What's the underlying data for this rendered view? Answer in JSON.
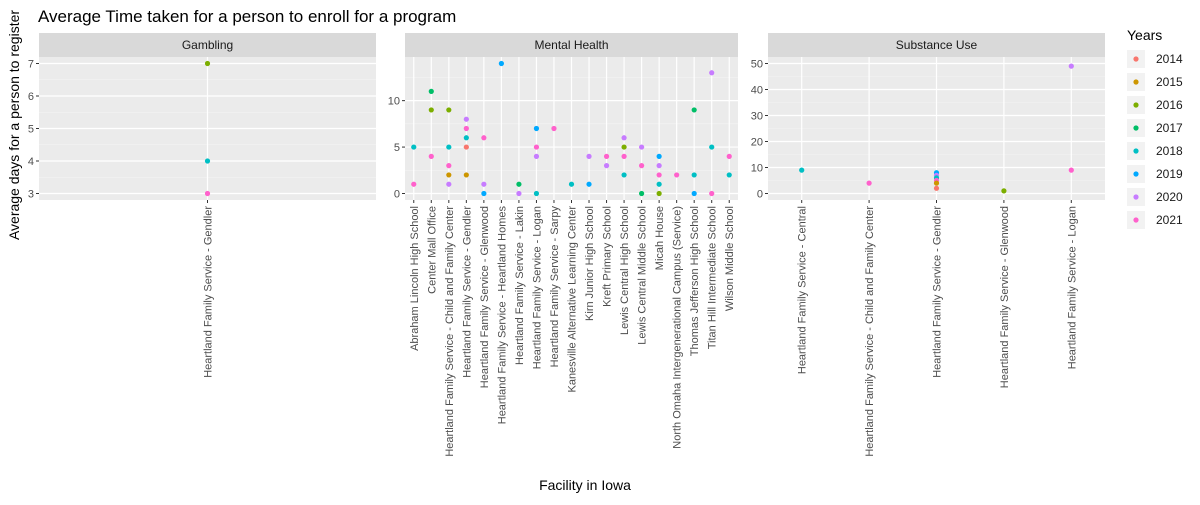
{
  "chart_data": {
    "type": "scatter",
    "title": "Average Time taken for a person to enroll for a program",
    "xlabel": "Facility in Iowa",
    "ylabel": "Average days for a person to register",
    "legend": {
      "title": "Years",
      "placement": "right",
      "entries": [
        {
          "year": "2014",
          "color": "#F8766D"
        },
        {
          "year": "2015",
          "color": "#CD9600"
        },
        {
          "year": "2016",
          "color": "#7CAE00"
        },
        {
          "year": "2017",
          "color": "#00BE67"
        },
        {
          "year": "2018",
          "color": "#00BFC4"
        },
        {
          "year": "2019",
          "color": "#00A9FF"
        },
        {
          "year": "2020",
          "color": "#C77CFF"
        },
        {
          "year": "2021",
          "color": "#FF61CC"
        }
      ]
    },
    "grid": true,
    "panels": [
      {
        "name": "Gambling",
        "ylim": [
          2.8,
          7.2
        ],
        "yticks": [
          3,
          4,
          5,
          6,
          7
        ],
        "categories": [
          "Heartland Family Service - Gendler"
        ],
        "points": [
          {
            "x": "Heartland Family Service - Gendler",
            "year": "2016",
            "y": 7
          },
          {
            "x": "Heartland Family Service - Gendler",
            "year": "2018",
            "y": 4
          },
          {
            "x": "Heartland Family Service - Gendler",
            "year": "2021",
            "y": 3
          }
        ]
      },
      {
        "name": "Mental Health",
        "ylim": [
          -0.7,
          14.7
        ],
        "yticks": [
          0,
          5,
          10
        ],
        "categories": [
          "Abraham Lincoln High School",
          "Center Mall Office",
          "Heartland Family Service - Child and Family Center",
          "Heartland Family Service - Gendler",
          "Heartland Family Service - Glenwood",
          "Heartland Family Service - Heartland Homes",
          "Heartland Family Service - Lakin",
          "Heartland Family Service - Logan",
          "Heartland Family Service - Sarpy",
          "Kanesville Alternative Learning Center",
          "Kirn Junior High  School",
          "Kreft Primary School",
          "Lewis Central High School",
          "Lewis Central Middle School",
          "Micah House",
          "North Omaha Intergenerational Campus (Service)",
          "Thomas Jefferson High School",
          "Titan Hill Intermediate School",
          "Wilson Middle School"
        ],
        "points": [
          {
            "x": "Abraham Lincoln High School",
            "year": "2018",
            "y": 5
          },
          {
            "x": "Abraham Lincoln High School",
            "year": "2021",
            "y": 1
          },
          {
            "x": "Center Mall Office",
            "year": "2017",
            "y": 11
          },
          {
            "x": "Center Mall Office",
            "year": "2016",
            "y": 9
          },
          {
            "x": "Center Mall Office",
            "year": "2021",
            "y": 4
          },
          {
            "x": "Heartland Family Service - Child and Family Center",
            "year": "2016",
            "y": 9
          },
          {
            "x": "Heartland Family Service - Child and Family Center",
            "year": "2018",
            "y": 5
          },
          {
            "x": "Heartland Family Service - Child and Family Center",
            "year": "2021",
            "y": 3
          },
          {
            "x": "Heartland Family Service - Child and Family Center",
            "year": "2015",
            "y": 2
          },
          {
            "x": "Heartland Family Service - Child and Family Center",
            "year": "2020",
            "y": 1
          },
          {
            "x": "Heartland Family Service - Gendler",
            "year": "2020",
            "y": 8
          },
          {
            "x": "Heartland Family Service - Gendler",
            "year": "2021",
            "y": 7
          },
          {
            "x": "Heartland Family Service - Gendler",
            "year": "2018",
            "y": 6
          },
          {
            "x": "Heartland Family Service - Gendler",
            "year": "2014",
            "y": 5
          },
          {
            "x": "Heartland Family Service - Gendler",
            "year": "2015",
            "y": 2
          },
          {
            "x": "Heartland Family Service - Glenwood",
            "year": "2021",
            "y": 6
          },
          {
            "x": "Heartland Family Service - Glenwood",
            "year": "2020",
            "y": 1
          },
          {
            "x": "Heartland Family Service - Glenwood",
            "year": "2019",
            "y": 0
          },
          {
            "x": "Heartland Family Service - Heartland Homes",
            "year": "2019",
            "y": 14
          },
          {
            "x": "Heartland Family Service - Lakin",
            "year": "2017",
            "y": 1
          },
          {
            "x": "Heartland Family Service - Lakin",
            "year": "2020",
            "y": 0
          },
          {
            "x": "Heartland Family Service - Logan",
            "year": "2019",
            "y": 7
          },
          {
            "x": "Heartland Family Service - Logan",
            "year": "2021",
            "y": 5
          },
          {
            "x": "Heartland Family Service - Logan",
            "year": "2020",
            "y": 4
          },
          {
            "x": "Heartland Family Service - Logan",
            "year": "2018",
            "y": 0
          },
          {
            "x": "Heartland Family Service - Sarpy",
            "year": "2021",
            "y": 7
          },
          {
            "x": "Kanesville Alternative Learning Center",
            "year": "2018",
            "y": 1
          },
          {
            "x": "Kirn Junior High  School",
            "year": "2019",
            "y": 1
          },
          {
            "x": "Kirn Junior High  School",
            "year": "2020",
            "y": 4
          },
          {
            "x": "Kreft Primary School",
            "year": "2021",
            "y": 4
          },
          {
            "x": "Kreft Primary School",
            "year": "2020",
            "y": 3
          },
          {
            "x": "Lewis Central High School",
            "year": "2020",
            "y": 6
          },
          {
            "x": "Lewis Central High School",
            "year": "2016",
            "y": 5
          },
          {
            "x": "Lewis Central High School",
            "year": "2021",
            "y": 4
          },
          {
            "x": "Lewis Central High School",
            "year": "2018",
            "y": 2
          },
          {
            "x": "Lewis Central Middle School",
            "year": "2020",
            "y": 5
          },
          {
            "x": "Lewis Central Middle School",
            "year": "2021",
            "y": 3
          },
          {
            "x": "Lewis Central Middle School",
            "year": "2017",
            "y": 0
          },
          {
            "x": "Micah House",
            "year": "2019",
            "y": 4
          },
          {
            "x": "Micah House",
            "year": "2020",
            "y": 3
          },
          {
            "x": "Micah House",
            "year": "2021",
            "y": 2
          },
          {
            "x": "Micah House",
            "year": "2018",
            "y": 1
          },
          {
            "x": "Micah House",
            "year": "2016",
            "y": 0
          },
          {
            "x": "North Omaha Intergenerational Campus (Service)",
            "year": "2021",
            "y": 2
          },
          {
            "x": "Thomas Jefferson High School",
            "year": "2017",
            "y": 9
          },
          {
            "x": "Thomas Jefferson High School",
            "year": "2018",
            "y": 2
          },
          {
            "x": "Thomas Jefferson High School",
            "year": "2019",
            "y": 0
          },
          {
            "x": "Titan Hill Intermediate School",
            "year": "2020",
            "y": 13
          },
          {
            "x": "Titan Hill Intermediate School",
            "year": "2018",
            "y": 5
          },
          {
            "x": "Titan Hill Intermediate School",
            "year": "2021",
            "y": 0
          },
          {
            "x": "Wilson Middle School",
            "year": "2021",
            "y": 4
          },
          {
            "x": "Wilson Middle School",
            "year": "2018",
            "y": 2
          }
        ]
      },
      {
        "name": "Substance Use",
        "ylim": [
          -2.5,
          52.5
        ],
        "yticks": [
          0,
          10,
          20,
          30,
          40,
          50
        ],
        "categories": [
          "Heartland Family Service - Central",
          "Heartland Family Service - Child and Family Center",
          "Heartland Family Service - Gendler",
          "Heartland Family Service - Glenwood",
          "Heartland Family Service - Logan"
        ],
        "points": [
          {
            "x": "Heartland Family Service - Central",
            "year": "2018",
            "y": 9
          },
          {
            "x": "Heartland Family Service - Child and Family Center",
            "year": "2021",
            "y": 4
          },
          {
            "x": "Heartland Family Service - Gendler",
            "year": "2019",
            "y": 8
          },
          {
            "x": "Heartland Family Service - Gendler",
            "year": "2020",
            "y": 7
          },
          {
            "x": "Heartland Family Service - Gendler",
            "year": "2018",
            "y": 6
          },
          {
            "x": "Heartland Family Service - Gendler",
            "year": "2021",
            "y": 5
          },
          {
            "x": "Heartland Family Service - Gendler",
            "year": "2015",
            "y": 4
          },
          {
            "x": "Heartland Family Service - Gendler",
            "year": "2014",
            "y": 2
          },
          {
            "x": "Heartland Family Service - Glenwood",
            "year": "2016",
            "y": 1
          },
          {
            "x": "Heartland Family Service - Logan",
            "year": "2020",
            "y": 49
          },
          {
            "x": "Heartland Family Service - Logan",
            "year": "2021",
            "y": 9
          }
        ]
      }
    ]
  }
}
